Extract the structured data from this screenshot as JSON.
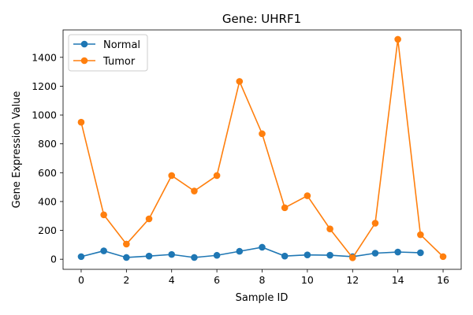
{
  "chart_data": {
    "type": "line",
    "title": "Gene: UHRF1",
    "xlabel": "Sample ID",
    "ylabel": "Gene Expression Value",
    "xlim": [
      -0.8,
      16.8
    ],
    "ylim": [
      -70,
      1590
    ],
    "xticks": [
      0,
      2,
      4,
      6,
      8,
      10,
      12,
      14,
      16
    ],
    "yticks": [
      0,
      200,
      400,
      600,
      800,
      1000,
      1200,
      1400
    ],
    "grid": false,
    "legend_position": "top-left",
    "series": [
      {
        "name": "Normal",
        "color": "#1f77b4",
        "x": [
          0,
          1,
          2,
          3,
          4,
          5,
          6,
          7,
          8,
          9,
          10,
          11,
          12,
          13,
          14,
          15
        ],
        "y": [
          18,
          58,
          12,
          22,
          33,
          12,
          27,
          55,
          83,
          22,
          30,
          28,
          18,
          42,
          50,
          45
        ]
      },
      {
        "name": "Tumor",
        "color": "#ff7f0e",
        "x": [
          0,
          1,
          2,
          3,
          4,
          5,
          6,
          7,
          8,
          9,
          10,
          11,
          12,
          13,
          14,
          15,
          16
        ],
        "y": [
          950,
          308,
          105,
          280,
          580,
          473,
          580,
          1233,
          870,
          357,
          440,
          210,
          10,
          250,
          1525,
          170,
          18
        ]
      }
    ]
  }
}
